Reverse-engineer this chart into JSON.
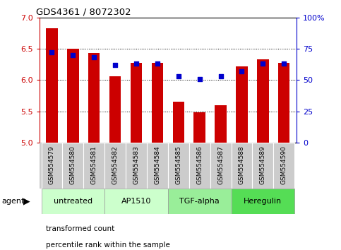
{
  "title": "GDS4361 / 8072302",
  "samples": [
    "GSM554579",
    "GSM554580",
    "GSM554581",
    "GSM554582",
    "GSM554583",
    "GSM554584",
    "GSM554585",
    "GSM554586",
    "GSM554587",
    "GSM554588",
    "GSM554589",
    "GSM554590"
  ],
  "red_values": [
    6.83,
    6.5,
    6.43,
    6.06,
    6.28,
    6.28,
    5.65,
    5.48,
    5.6,
    6.22,
    6.33,
    6.28
  ],
  "blue_values": [
    72,
    70,
    68,
    62,
    63,
    63,
    53,
    51,
    53,
    57,
    63,
    63
  ],
  "ylim": [
    5.0,
    7.0
  ],
  "yticks_left": [
    5.0,
    5.5,
    6.0,
    6.5,
    7.0
  ],
  "yticks_right": [
    0,
    25,
    50,
    75,
    100
  ],
  "right_ylabels": [
    "0",
    "25",
    "50",
    "75",
    "100%"
  ],
  "bar_color": "#cc0000",
  "dot_color": "#0000cc",
  "agent_groups": [
    {
      "label": "untreated",
      "start": 0,
      "end": 3,
      "color": "#ccffcc"
    },
    {
      "label": "AP1510",
      "start": 3,
      "end": 6,
      "color": "#ccffcc"
    },
    {
      "label": "TGF-alpha",
      "start": 6,
      "end": 9,
      "color": "#99ee99"
    },
    {
      "label": "Heregulin",
      "start": 9,
      "end": 12,
      "color": "#55dd55"
    }
  ],
  "legend_items": [
    {
      "color": "#cc0000",
      "label": "transformed count"
    },
    {
      "color": "#0000cc",
      "label": "percentile rank within the sample"
    }
  ],
  "bar_width": 0.55,
  "figsize": [
    4.83,
    3.54
  ],
  "dpi": 100,
  "sample_box_color": "#cccccc",
  "agent_label_color": "#000000",
  "grid_yticks": [
    5.5,
    6.0,
    6.5
  ]
}
